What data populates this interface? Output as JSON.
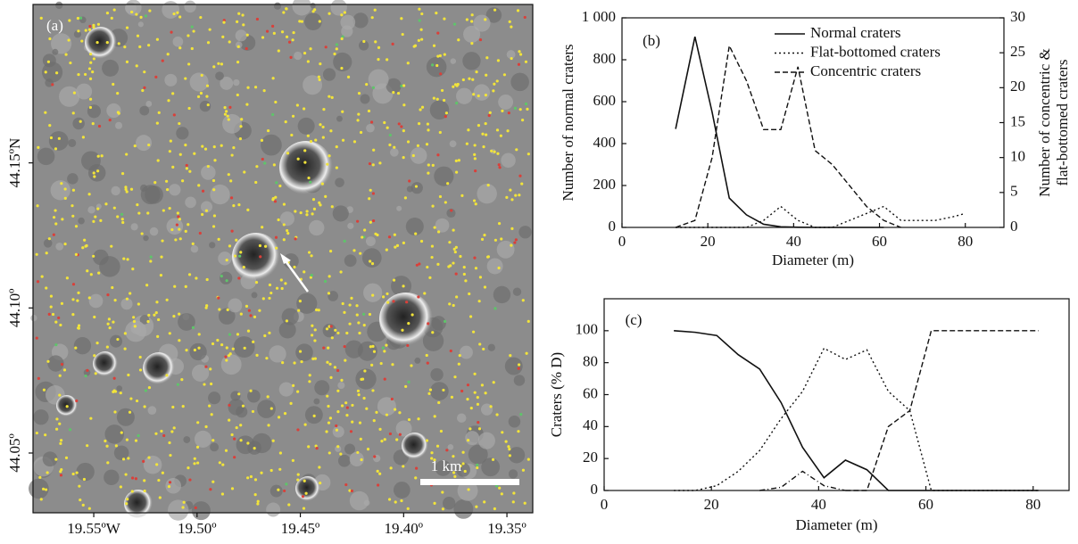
{
  "chart_data": [
    {
      "type": "image",
      "label": "(a)",
      "scale_bar": "1 km",
      "xlim": [
        -19.5794,
        -19.3375
      ],
      "xticks": [
        {
          "value": -19.55,
          "label": "19.55ºW"
        },
        {
          "value": -19.5,
          "label": "19.50º"
        },
        {
          "value": -19.45,
          "label": "19.45º"
        },
        {
          "value": -19.4,
          "label": "19.40º"
        },
        {
          "value": -19.35,
          "label": "19.35º"
        }
      ],
      "ylim": [
        44.0294,
        44.2046
      ],
      "yticks": [
        {
          "value": 44.15,
          "label": "44.15ºN"
        },
        {
          "value": 44.1,
          "label": "44.10º"
        },
        {
          "value": 44.05,
          "label": "44.05º"
        }
      ]
    },
    {
      "type": "line",
      "label": "(b)",
      "xlabel": "Diameter (m)",
      "ylabel": "Number of normal craters",
      "y2label": [
        "Number of concentric &",
        "flat-bottomed craters"
      ],
      "xlim": [
        0,
        89
      ],
      "xticks": [
        0,
        20,
        40,
        60,
        80
      ],
      "ylim": [
        0,
        1000
      ],
      "yticks": [
        0,
        200,
        400,
        600,
        800,
        {
          "value": 1000,
          "label": "1 000"
        }
      ],
      "y2lim": [
        0,
        30
      ],
      "y2ticks": [
        0,
        5,
        10,
        15,
        20,
        25,
        30
      ],
      "series": [
        {
          "name": "Normal craters",
          "color": "#111111",
          "dash": "none",
          "x": [
            12.5,
            17,
            21,
            25,
            29,
            33,
            37,
            41,
            45,
            49,
            53,
            57,
            61
          ],
          "values": [
            470,
            910,
            550,
            140,
            60,
            15,
            3,
            1,
            0,
            0,
            0,
            0,
            0
          ]
        },
        {
          "name": "Flat-bottomed craters",
          "color": "#111111",
          "dash": "2,3",
          "axis": "y2",
          "x": [
            12.5,
            17,
            21,
            25,
            29,
            33,
            37,
            41,
            45,
            49,
            53,
            57,
            61,
            65,
            69,
            73,
            77,
            80
          ],
          "values": [
            0,
            0,
            0,
            0,
            0,
            1,
            3,
            1,
            0,
            0,
            1,
            2,
            3,
            1,
            1,
            1,
            1.5,
            2
          ]
        },
        {
          "name": "Concentric craters",
          "color": "#111111",
          "dash": "6,3",
          "axis": "y2",
          "x": [
            12.5,
            17,
            21,
            25,
            29,
            33,
            37,
            41,
            45,
            49,
            53,
            57,
            61,
            65
          ],
          "values": [
            0,
            1,
            10,
            26,
            21,
            14,
            14,
            23,
            11,
            9,
            6,
            3,
            1,
            0
          ]
        }
      ]
    },
    {
      "type": "line",
      "label": "(c)",
      "xlabel": "Diameter (m)",
      "ylabel": "Craters (% D)",
      "xlim": [
        0,
        86.7
      ],
      "xticks": [
        0,
        20,
        40,
        60,
        80
      ],
      "ylim": [
        0,
        120
      ],
      "yticks": [
        0,
        20,
        40,
        60,
        80,
        100
      ],
      "series": [
        {
          "color": "#111111",
          "dash": "none",
          "x": [
            13,
            17,
            21,
            25,
            29,
            33,
            37,
            41,
            45,
            49,
            53,
            57,
            61,
            65,
            69,
            73,
            77,
            81
          ],
          "values": [
            100,
            99,
            97,
            85,
            76,
            55,
            27,
            8,
            19,
            13,
            0,
            0,
            0,
            0,
            0,
            0,
            0,
            0
          ]
        },
        {
          "color": "#111111",
          "dash": "2,3",
          "x": [
            13,
            17,
            21,
            25,
            29,
            33,
            37,
            41,
            45,
            49,
            53,
            57,
            61,
            65,
            69,
            73,
            77,
            81
          ],
          "values": [
            0,
            0,
            3,
            12,
            25,
            45,
            62,
            89,
            82,
            88,
            62,
            50,
            0,
            0,
            0,
            0,
            0,
            0
          ]
        },
        {
          "color": "#111111",
          "dash": "6,3,1,3",
          "x": [
            29,
            33,
            37,
            41,
            45
          ],
          "values": [
            0,
            2,
            12,
            3,
            0
          ]
        },
        {
          "color": "#111111",
          "dash": "6,3",
          "x": [
            45,
            49,
            53,
            57,
            61,
            65,
            69,
            73,
            77,
            81
          ],
          "values": [
            0,
            0,
            40,
            50,
            100,
            100,
            100,
            100,
            100,
            100
          ]
        }
      ]
    }
  ]
}
